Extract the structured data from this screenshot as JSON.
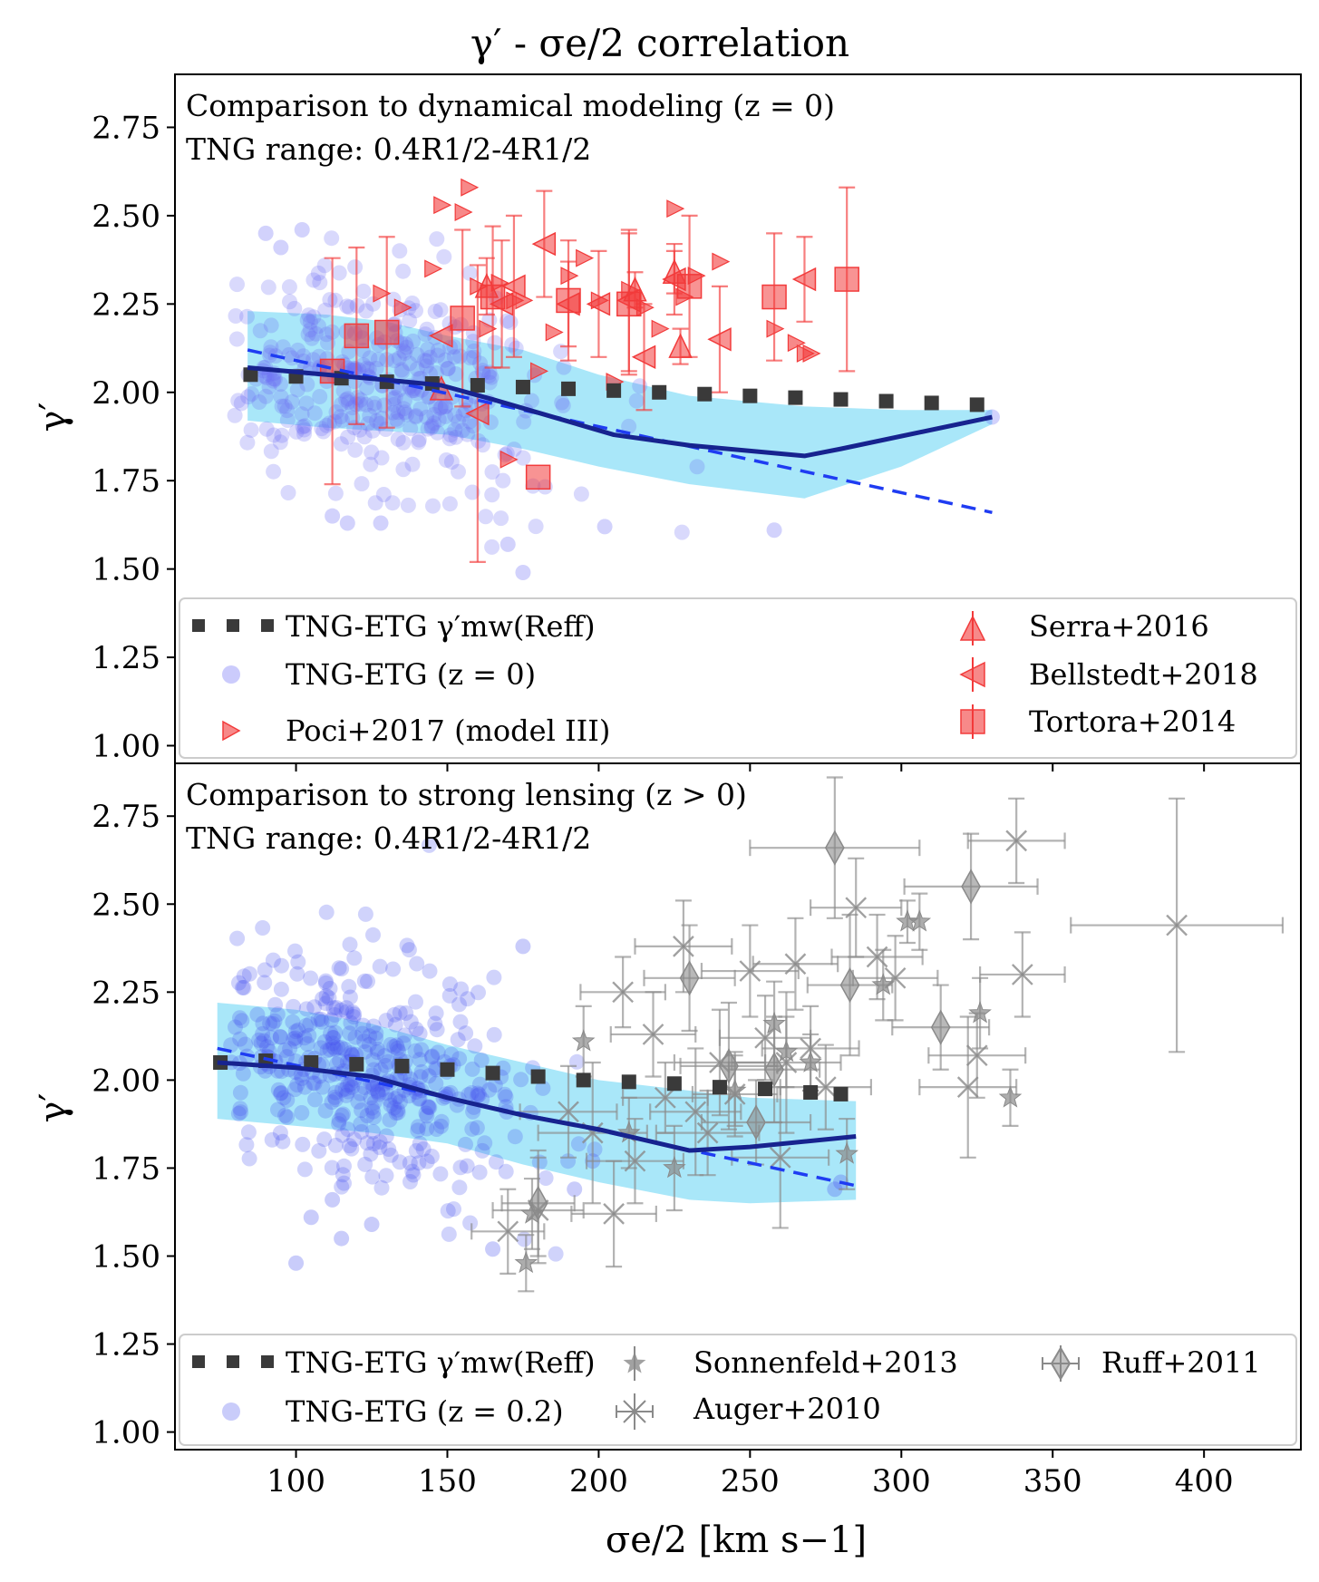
{
  "chart_data": [
    {
      "type": "scatter",
      "panel": "top",
      "title": "γ′ - σe/2 correlation",
      "annotation_lines": [
        "Comparison to dynamical modeling (z = 0)",
        "TNG range: 0.4R1/2-4R1/2"
      ],
      "ylabel": "γ′",
      "xlabel": "",
      "xlim": [
        60,
        432
      ],
      "ylim": [
        0.95,
        2.9
      ],
      "yticks": [
        "1.00",
        "1.25",
        "1.50",
        "1.75",
        "2.00",
        "2.25",
        "2.50",
        "2.75"
      ],
      "xticks": [],
      "legend_placement": "bottom",
      "legend": [
        {
          "label": "TNG-ETG γ′mw(Reff)",
          "marker": "dotted-square"
        },
        {
          "label": "TNG-ETG (z = 0)",
          "marker": "circle"
        },
        {
          "label": "Poci+2017 (model III)",
          "marker": "triangle-right"
        },
        {
          "label": "Serra+2016",
          "marker": "triangle-up"
        },
        {
          "label": "Bellstedt+2018",
          "marker": "triangle-left"
        },
        {
          "label": "Tortora+2014",
          "marker": "square"
        }
      ],
      "colors": {
        "tng_points": "#6b6bf5",
        "band": "#1ec0f0",
        "median": "#17238f",
        "fit": "#1f3cf2",
        "obs": "#f23b3b",
        "mw_line": "#3a3a3a"
      },
      "tng_mw_line": {
        "x": [
          85,
          100,
          115,
          130,
          145,
          160,
          175,
          190,
          205,
          220,
          235,
          250,
          265,
          280,
          295,
          310,
          325
        ],
        "y": [
          2.05,
          2.045,
          2.04,
          2.03,
          2.025,
          2.02,
          2.015,
          2.01,
          2.005,
          2.0,
          1.995,
          1.99,
          1.985,
          1.98,
          1.975,
          1.97,
          1.965
        ]
      },
      "tng_median": {
        "x": [
          84,
          110,
          130,
          148,
          165,
          185,
          205,
          230,
          268,
          280,
          330
        ],
        "y": [
          2.07,
          2.05,
          2.035,
          2.02,
          1.98,
          1.93,
          1.88,
          1.85,
          1.82,
          1.84,
          1.93
        ]
      },
      "tng_fit": {
        "x": [
          84,
          330
        ],
        "y": [
          2.12,
          1.66
        ]
      },
      "tng_band": {
        "x": [
          84,
          110,
          130,
          150,
          175,
          200,
          230,
          268,
          300,
          330
        ],
        "upper": [
          2.23,
          2.22,
          2.2,
          2.16,
          2.12,
          2.05,
          1.99,
          1.96,
          1.95,
          1.95
        ],
        "lower": [
          1.92,
          1.9,
          1.89,
          1.88,
          1.84,
          1.79,
          1.74,
          1.7,
          1.79,
          1.91
        ]
      },
      "tng_points_cloud": {
        "x_center": 128,
        "x_spread": 28,
        "y_center": 2.04,
        "y_spread": 0.15,
        "count": 360
      },
      "tng_points_extra": {
        "x": [
          90,
          95,
          102,
          112,
          117,
          128,
          170,
          175,
          202,
          258,
          330
        ],
        "y": [
          2.45,
          2.41,
          2.46,
          1.65,
          1.63,
          1.63,
          1.57,
          1.49,
          1.62,
          1.61,
          1.93
        ]
      },
      "poci2017": {
        "x": [
          128,
          135,
          145,
          148,
          155,
          157,
          160,
          163,
          167,
          170,
          172,
          175,
          180,
          185,
          190,
          195,
          200,
          205,
          210,
          215,
          220,
          225,
          228,
          232,
          240,
          258,
          265,
          268,
          270
        ],
        "y": [
          2.28,
          2.24,
          2.35,
          2.53,
          2.51,
          2.58,
          2.3,
          2.18,
          2.31,
          1.81,
          2.26,
          2.26,
          2.06,
          2.17,
          2.33,
          2.38,
          2.26,
          2.03,
          2.29,
          2.24,
          2.18,
          2.52,
          2.27,
          2.33,
          2.37,
          2.18,
          2.14,
          2.11,
          2.11
        ]
      },
      "serra2016": {
        "x": [
          148,
          163,
          212,
          225,
          227
        ],
        "y": [
          2.01,
          2.3,
          2.29,
          2.34,
          2.13
        ],
        "yerr": [
          0.0,
          0.08,
          0.05,
          0.06,
          0.05
        ]
      },
      "bellstedt2018": {
        "x": [
          148,
          160,
          168,
          172,
          182,
          190,
          200,
          210,
          215,
          225,
          240,
          268
        ],
        "y": [
          2.16,
          1.94,
          2.25,
          2.3,
          2.42,
          2.25,
          2.25,
          2.26,
          2.1,
          2.32,
          2.15,
          2.32
        ],
        "yerr": [
          0.0,
          0.42,
          0.18,
          0.2,
          0.15,
          0.12,
          0.15,
          0.2,
          0.15,
          0.1,
          0.15,
          0.12
        ]
      },
      "tortora2014": {
        "x": [
          112,
          120,
          130,
          155,
          165,
          180,
          190,
          210,
          230,
          258,
          282
        ],
        "y": [
          2.06,
          2.16,
          2.17,
          2.21,
          2.27,
          1.76,
          2.26,
          2.25,
          2.3,
          2.27,
          2.32
        ],
        "yerr": [
          0.32,
          0.25,
          0.27,
          0.25,
          0.2,
          0.0,
          0.17,
          0.2,
          0.2,
          0.18,
          0.26
        ]
      }
    },
    {
      "type": "scatter",
      "panel": "bottom",
      "annotation_lines": [
        "Comparison to strong lensing (z > 0)",
        "TNG range: 0.4R1/2-4R1/2"
      ],
      "ylabel": "γ′",
      "xlabel": "σe/2 [km s−1]",
      "xlim": [
        60,
        432
      ],
      "ylim": [
        0.95,
        2.9
      ],
      "xticks": [
        "100",
        "150",
        "200",
        "250",
        "300",
        "350",
        "400"
      ],
      "yticks": [
        "1.00",
        "1.25",
        "1.50",
        "1.75",
        "2.00",
        "2.25",
        "2.50",
        "2.75"
      ],
      "legend_placement": "bottom",
      "legend": [
        {
          "label": "TNG-ETG γ′mw(Reff)",
          "marker": "dotted-square"
        },
        {
          "label": "TNG-ETG (z = 0.2)",
          "marker": "circle"
        },
        {
          "label": "Sonnenfeld+2013",
          "marker": "star"
        },
        {
          "label": "Auger+2010",
          "marker": "x"
        },
        {
          "label": "Ruff+2011",
          "marker": "diamond"
        }
      ],
      "colors": {
        "tng_points": "#4b55f0",
        "band": "#1ec0f0",
        "median": "#17238f",
        "fit": "#1f3cf2",
        "obs": "#8a8a8a",
        "mw_line": "#3a3a3a"
      },
      "tng_mw_line": {
        "x": [
          75,
          90,
          105,
          120,
          135,
          150,
          165,
          180,
          195,
          210,
          225,
          240,
          255,
          270,
          280
        ],
        "y": [
          2.05,
          2.055,
          2.05,
          2.045,
          2.04,
          2.03,
          2.02,
          2.01,
          2.0,
          1.995,
          1.99,
          1.98,
          1.975,
          1.965,
          1.96
        ]
      },
      "tng_median": {
        "x": [
          74,
          100,
          125,
          150,
          175,
          200,
          230,
          250,
          285
        ],
        "y": [
          2.05,
          2.035,
          2.01,
          1.95,
          1.9,
          1.86,
          1.8,
          1.81,
          1.84
        ]
      },
      "tng_fit": {
        "x": [
          74,
          285
        ],
        "y": [
          2.09,
          1.7
        ]
      },
      "tng_band": {
        "x": [
          74,
          100,
          125,
          150,
          175,
          200,
          230,
          250,
          285
        ],
        "upper": [
          2.22,
          2.2,
          2.16,
          2.1,
          2.05,
          2.0,
          1.97,
          1.95,
          1.94
        ],
        "lower": [
          1.89,
          1.87,
          1.85,
          1.82,
          1.76,
          1.71,
          1.66,
          1.65,
          1.66
        ]
      },
      "tng_points_cloud": {
        "x_center": 122,
        "x_spread": 27,
        "y_center": 2.02,
        "y_spread": 0.16,
        "count": 420
      },
      "tng_points_extra": {
        "x": [
          100,
          105,
          112,
          115,
          125,
          165,
          175,
          192,
          198,
          278,
          280
        ],
        "y": [
          1.48,
          1.61,
          1.66,
          1.55,
          1.59,
          1.52,
          2.38,
          1.69,
          1.77,
          1.69,
          1.71
        ]
      },
      "sonnenfeld2013": {
        "x": [
          176,
          178,
          195,
          210,
          225,
          245,
          258,
          262,
          270,
          282,
          294,
          302,
          306,
          326,
          336
        ],
        "y": [
          1.48,
          1.62,
          2.11,
          1.85,
          1.75,
          1.97,
          2.16,
          2.08,
          2.05,
          1.79,
          2.27,
          2.45,
          2.45,
          2.19,
          1.95
        ],
        "yerr": [
          0.08,
          0.1,
          0.1,
          0.1,
          0.12,
          0.1,
          0.12,
          0.1,
          0.08,
          0.1,
          0.1,
          0.06,
          0.08,
          0.1,
          0.08
        ]
      },
      "auger2010": {
        "x": [
          170,
          180,
          190,
          198,
          205,
          208,
          212,
          218,
          222,
          228,
          232,
          236,
          240,
          245,
          250,
          255,
          260,
          262,
          265,
          270,
          275,
          285,
          292,
          298,
          322,
          325,
          338,
          340,
          391
        ],
        "y": [
          1.57,
          1.63,
          1.91,
          1.85,
          1.62,
          2.25,
          1.77,
          2.13,
          1.95,
          2.38,
          1.91,
          1.85,
          2.05,
          1.96,
          2.31,
          2.12,
          1.78,
          2.05,
          2.33,
          2.09,
          1.98,
          2.49,
          2.35,
          2.29,
          1.98,
          2.07,
          2.68,
          2.3,
          2.44
        ],
        "xerr": [
          12,
          15,
          16,
          18,
          14,
          14,
          16,
          14,
          14,
          16,
          15,
          17,
          15,
          14,
          16,
          15,
          16,
          18,
          14,
          16,
          15,
          15,
          15,
          14,
          16,
          16,
          16,
          14,
          35
        ],
        "yerr": [
          0.12,
          0.15,
          0.13,
          0.2,
          0.15,
          0.1,
          0.12,
          0.12,
          0.1,
          0.13,
          0.18,
          0.12,
          0.15,
          0.12,
          0.13,
          0.12,
          0.2,
          0.2,
          0.13,
          0.12,
          0.12,
          0.14,
          0.12,
          0.12,
          0.2,
          0.12,
          0.12,
          0.12,
          0.36
        ]
      },
      "ruff2011": {
        "x": [
          180,
          230,
          243,
          252,
          258,
          278,
          283,
          313,
          323
        ],
        "y": [
          1.65,
          2.29,
          2.04,
          1.88,
          2.03,
          2.66,
          2.27,
          2.15,
          2.55
        ],
        "xerr": [
          12,
          15,
          16,
          18,
          15,
          28,
          14,
          16,
          22
        ],
        "yerr": [
          0.15,
          0.15,
          0.18,
          0.12,
          0.15,
          0.2,
          0.2,
          0.12,
          0.15
        ]
      }
    }
  ]
}
